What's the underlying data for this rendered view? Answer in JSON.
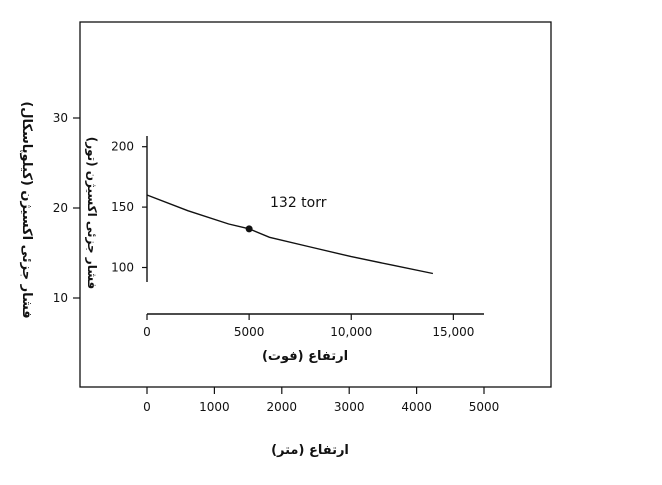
{
  "chart_data": {
    "type": "line",
    "title": "",
    "outer_axes": {
      "xlabel": "ارتفاع (متر)",
      "ylabel": "فشار جزئی اکسیژن (کیلوپاسکال)",
      "xticks": [
        0,
        1000,
        2000,
        3000,
        4000,
        5000
      ],
      "xtick_labels": [
        "0",
        "1000",
        "2000",
        "3000",
        "4000",
        "5000"
      ],
      "yticks": [
        10,
        20,
        30
      ],
      "yticks_labels": [
        "10",
        "20",
        "30"
      ],
      "xlim": [
        0,
        5000
      ],
      "ylim": [
        0,
        30
      ]
    },
    "inset_axes": {
      "xlabel": "ارتفاع (فوت)",
      "ylabel": "فشار جزئی اکسیژن (تور)",
      "xticks": [
        0,
        5000,
        10000,
        15000
      ],
      "xtick_labels": [
        "0",
        "5000",
        "10,000",
        "15,000"
      ],
      "yticks": [
        100,
        150,
        200
      ],
      "ytick_labels": [
        "100",
        "150",
        "200"
      ],
      "xlim": [
        0,
        16500
      ],
      "ylim": [
        88,
        213
      ]
    },
    "series": [
      {
        "x": [
          0,
          2000,
          4000,
          5000,
          6000,
          8000,
          10000,
          12000,
          14000
        ],
        "values": [
          160,
          147,
          136,
          132,
          125,
          117,
          109,
          102,
          95
        ]
      }
    ],
    "highlight_point": {
      "x": 5000,
      "y": 132
    },
    "annotation": "132 torr",
    "colors": {
      "line": "#111111",
      "frame": "#111111",
      "background": "#ffffff"
    }
  }
}
